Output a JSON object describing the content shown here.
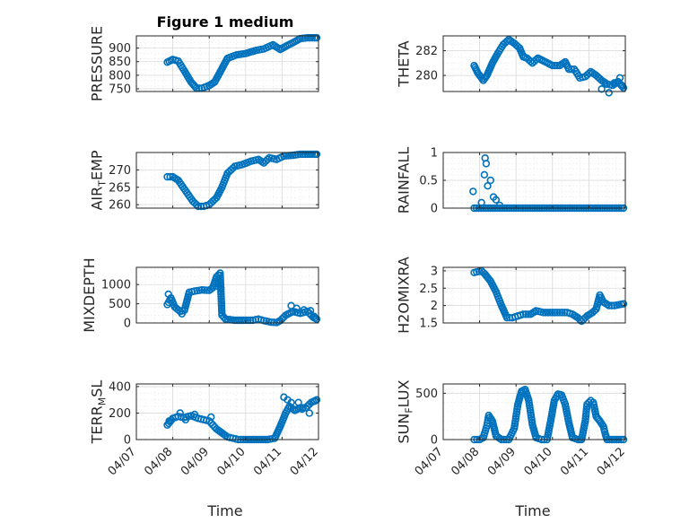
{
  "colors": {
    "marker": "#0072bd",
    "axis": "#262626"
  },
  "chart_data": {
    "type": "scatter",
    "title": "Figure 1 medium",
    "xlabel": "Time",
    "xlim_days": [
      7,
      12
    ],
    "xticks": [
      {
        "day": 7,
        "label": "04/07"
      },
      {
        "day": 8,
        "label": "04/08"
      },
      {
        "day": 9,
        "label": "04/09"
      },
      {
        "day": 10,
        "label": "04/10"
      },
      {
        "day": 11,
        "label": "04/11"
      },
      {
        "day": 12,
        "label": "04/12"
      }
    ],
    "panels": [
      {
        "id": "pressure",
        "ylabel_main": "PRESSURE",
        "ylabel_sub": "",
        "ylabel_tail": "",
        "ylim": [
          740,
          945
        ],
        "yticks": [
          750,
          800,
          850,
          900
        ],
        "keypoints": [
          [
            7.85,
            848
          ],
          [
            8.0,
            858
          ],
          [
            8.15,
            852
          ],
          [
            8.3,
            820
          ],
          [
            8.5,
            775
          ],
          [
            8.65,
            752
          ],
          [
            8.8,
            752
          ],
          [
            9.0,
            762
          ],
          [
            9.15,
            775
          ],
          [
            9.3,
            812
          ],
          [
            9.5,
            862
          ],
          [
            9.75,
            875
          ],
          [
            10.0,
            880
          ],
          [
            10.3,
            892
          ],
          [
            10.5,
            897
          ],
          [
            10.75,
            912
          ],
          [
            10.95,
            895
          ],
          [
            11.15,
            910
          ],
          [
            11.3,
            920
          ],
          [
            11.5,
            935
          ],
          [
            11.7,
            938
          ],
          [
            11.95,
            938
          ]
        ],
        "scatter": []
      },
      {
        "id": "theta",
        "ylabel_main": "THETA",
        "ylabel_sub": "",
        "ylabel_tail": "",
        "ylim": [
          278.7,
          283.2
        ],
        "yticks": [
          280,
          282
        ],
        "keypoints": [
          [
            7.85,
            280.8
          ],
          [
            7.95,
            280.2
          ],
          [
            8.1,
            279.6
          ],
          [
            8.2,
            280.0
          ],
          [
            8.35,
            281.0
          ],
          [
            8.5,
            281.8
          ],
          [
            8.65,
            282.5
          ],
          [
            8.8,
            282.9
          ],
          [
            8.95,
            282.6
          ],
          [
            9.1,
            282.2
          ],
          [
            9.2,
            281.5
          ],
          [
            9.3,
            281.4
          ],
          [
            9.45,
            281.0
          ],
          [
            9.6,
            281.4
          ],
          [
            9.8,
            281.1
          ],
          [
            10.0,
            280.8
          ],
          [
            10.2,
            280.8
          ],
          [
            10.35,
            281.1
          ],
          [
            10.45,
            280.5
          ],
          [
            10.6,
            280.5
          ],
          [
            10.75,
            279.8
          ],
          [
            10.9,
            279.9
          ],
          [
            11.05,
            280.3
          ],
          [
            11.2,
            280.0
          ],
          [
            11.35,
            279.6
          ],
          [
            11.5,
            279.3
          ],
          [
            11.65,
            279.2
          ],
          [
            11.8,
            279.5
          ],
          [
            11.95,
            279.0
          ]
        ],
        "scatter": [
          [
            11.35,
            278.9
          ],
          [
            11.45,
            279.3
          ],
          [
            11.55,
            278.6
          ],
          [
            11.7,
            279.4
          ],
          [
            11.85,
            279.8
          ],
          [
            11.9,
            279.2
          ]
        ]
      },
      {
        "id": "air_temp",
        "ylabel_main": "AIR",
        "ylabel_sub": "T",
        "ylabel_tail": "EMP",
        "ylim": [
          259,
          275
        ],
        "yticks": [
          260,
          265,
          270
        ],
        "keypoints": [
          [
            7.85,
            268.0
          ],
          [
            8.0,
            268.0
          ],
          [
            8.15,
            267.0
          ],
          [
            8.35,
            264.0
          ],
          [
            8.55,
            261.0
          ],
          [
            8.7,
            259.5
          ],
          [
            8.85,
            259.5
          ],
          [
            9.0,
            260.0
          ],
          [
            9.2,
            262.0
          ],
          [
            9.35,
            265.0
          ],
          [
            9.5,
            269.0
          ],
          [
            9.7,
            271.0
          ],
          [
            9.9,
            271.5
          ],
          [
            10.15,
            272.5
          ],
          [
            10.35,
            273.0
          ],
          [
            10.5,
            272.0
          ],
          [
            10.65,
            273.5
          ],
          [
            10.85,
            273.0
          ],
          [
            11.05,
            274.0
          ],
          [
            11.3,
            274.2
          ],
          [
            11.5,
            274.5
          ],
          [
            11.7,
            274.5
          ],
          [
            11.95,
            274.5
          ]
        ],
        "scatter": []
      },
      {
        "id": "rainfall",
        "ylabel_main": "RAINFALL",
        "ylabel_sub": "",
        "ylabel_tail": "",
        "ylim": [
          0,
          1
        ],
        "yticks": [
          0,
          0.5,
          1
        ],
        "keypoints": [
          [
            7.85,
            0
          ],
          [
            11.95,
            0
          ]
        ],
        "scatter": [
          [
            7.82,
            0.3
          ],
          [
            8.05,
            0.1
          ],
          [
            8.13,
            0.6
          ],
          [
            8.15,
            0.9
          ],
          [
            8.18,
            0.8
          ],
          [
            8.22,
            0.4
          ],
          [
            8.3,
            0.5
          ],
          [
            8.38,
            0.2
          ],
          [
            8.45,
            0.15
          ],
          [
            8.55,
            0.05
          ]
        ]
      },
      {
        "id": "mixdepth",
        "ylabel_main": "MIXDEPTH",
        "ylabel_sub": "",
        "ylabel_tail": "",
        "ylim": [
          0,
          1450
        ],
        "yticks": [
          0,
          500,
          1000
        ],
        "keypoints": [
          [
            7.85,
            480
          ],
          [
            7.95,
            650
          ],
          [
            8.05,
            420
          ],
          [
            8.2,
            300
          ],
          [
            8.32,
            330
          ],
          [
            8.45,
            800
          ],
          [
            8.6,
            830
          ],
          [
            8.8,
            860
          ],
          [
            9.0,
            850
          ],
          [
            9.1,
            920
          ],
          [
            9.2,
            1200
          ],
          [
            9.3,
            1300
          ],
          [
            9.35,
            200
          ],
          [
            9.45,
            100
          ],
          [
            9.7,
            70
          ],
          [
            10.0,
            70
          ],
          [
            10.2,
            70
          ],
          [
            10.35,
            100
          ],
          [
            10.5,
            60
          ],
          [
            10.7,
            20
          ],
          [
            10.85,
            10
          ],
          [
            10.95,
            60
          ],
          [
            11.1,
            200
          ],
          [
            11.3,
            300
          ],
          [
            11.5,
            250
          ],
          [
            11.7,
            300
          ],
          [
            11.85,
            150
          ],
          [
            11.95,
            100
          ]
        ],
        "scatter": [
          [
            7.88,
            750
          ],
          [
            8.25,
            240
          ],
          [
            9.25,
            950
          ],
          [
            9.32,
            900
          ],
          [
            11.25,
            450
          ],
          [
            11.4,
            380
          ],
          [
            11.6,
            340
          ],
          [
            11.78,
            320
          ],
          [
            11.88,
            170
          ]
        ]
      },
      {
        "id": "h2omixra",
        "ylabel_main": "H2OMIXRA",
        "ylabel_sub": "",
        "ylabel_tail": "",
        "ylim": [
          1.5,
          3.1
        ],
        "yticks": [
          1.5,
          2,
          2.5,
          3
        ],
        "keypoints": [
          [
            7.85,
            2.95
          ],
          [
            8.05,
            3.0
          ],
          [
            8.15,
            2.9
          ],
          [
            8.3,
            2.7
          ],
          [
            8.45,
            2.4
          ],
          [
            8.6,
            2.0
          ],
          [
            8.75,
            1.65
          ],
          [
            8.9,
            1.65
          ],
          [
            9.05,
            1.7
          ],
          [
            9.2,
            1.75
          ],
          [
            9.4,
            1.75
          ],
          [
            9.55,
            1.85
          ],
          [
            9.75,
            1.8
          ],
          [
            10.0,
            1.8
          ],
          [
            10.2,
            1.8
          ],
          [
            10.4,
            1.8
          ],
          [
            10.55,
            1.75
          ],
          [
            10.7,
            1.65
          ],
          [
            10.8,
            1.55
          ],
          [
            10.95,
            1.7
          ],
          [
            11.1,
            1.8
          ],
          [
            11.2,
            1.9
          ],
          [
            11.3,
            2.3
          ],
          [
            11.4,
            2.1
          ],
          [
            11.55,
            2.0
          ],
          [
            11.7,
            2.0
          ],
          [
            11.95,
            2.05
          ]
        ],
        "scatter": []
      },
      {
        "id": "terr_msl",
        "ylabel_main": "TERR",
        "ylabel_sub": "M",
        "ylabel_tail": "SL",
        "ylim": [
          0,
          420
        ],
        "yticks": [
          0,
          200,
          400
        ],
        "keypoints": [
          [
            7.85,
            110
          ],
          [
            8.0,
            160
          ],
          [
            8.15,
            175
          ],
          [
            8.3,
            165
          ],
          [
            8.5,
            180
          ],
          [
            8.7,
            160
          ],
          [
            8.85,
            150
          ],
          [
            9.0,
            140
          ],
          [
            9.1,
            110
          ],
          [
            9.2,
            80
          ],
          [
            9.35,
            50
          ],
          [
            9.5,
            20
          ],
          [
            9.65,
            10
          ],
          [
            9.8,
            0
          ],
          [
            10.0,
            0
          ],
          [
            10.3,
            0
          ],
          [
            10.6,
            0
          ],
          [
            10.8,
            10
          ],
          [
            10.95,
            100
          ],
          [
            11.1,
            200
          ],
          [
            11.2,
            250
          ],
          [
            11.35,
            220
          ],
          [
            11.5,
            240
          ],
          [
            11.65,
            240
          ],
          [
            11.8,
            280
          ],
          [
            11.95,
            300
          ]
        ],
        "scatter": [
          [
            7.9,
            140
          ],
          [
            8.2,
            200
          ],
          [
            8.35,
            150
          ],
          [
            8.6,
            190
          ],
          [
            9.05,
            170
          ],
          [
            9.3,
            60
          ],
          [
            11.05,
            320
          ],
          [
            11.15,
            300
          ],
          [
            11.25,
            280
          ],
          [
            11.45,
            280
          ],
          [
            11.55,
            230
          ],
          [
            11.75,
            200
          ],
          [
            11.9,
            290
          ]
        ]
      },
      {
        "id": "sun_flux",
        "ylabel_main": "SUN",
        "ylabel_sub": "F",
        "ylabel_tail": "LUX",
        "ylim": [
          0,
          600
        ],
        "yticks": [
          0,
          500
        ],
        "keypoints": [
          [
            7.85,
            0
          ],
          [
            8.0,
            0
          ],
          [
            8.1,
            20
          ],
          [
            8.2,
            150
          ],
          [
            8.25,
            260
          ],
          [
            8.35,
            200
          ],
          [
            8.45,
            40
          ],
          [
            8.6,
            0
          ],
          [
            8.8,
            0
          ],
          [
            8.95,
            120
          ],
          [
            9.05,
            380
          ],
          [
            9.15,
            520
          ],
          [
            9.25,
            540
          ],
          [
            9.35,
            420
          ],
          [
            9.45,
            160
          ],
          [
            9.55,
            20
          ],
          [
            9.7,
            0
          ],
          [
            9.85,
            0
          ],
          [
            9.95,
            200
          ],
          [
            10.05,
            420
          ],
          [
            10.15,
            490
          ],
          [
            10.25,
            480
          ],
          [
            10.35,
            380
          ],
          [
            10.45,
            180
          ],
          [
            10.55,
            20
          ],
          [
            10.7,
            0
          ],
          [
            10.8,
            0
          ],
          [
            10.9,
            200
          ],
          [
            10.95,
            380
          ],
          [
            11.05,
            420
          ],
          [
            11.12,
            400
          ],
          [
            11.2,
            250
          ],
          [
            11.3,
            200
          ],
          [
            11.4,
            140
          ],
          [
            11.45,
            60
          ],
          [
            11.5,
            0
          ],
          [
            11.95,
            0
          ]
        ],
        "scatter": []
      }
    ]
  }
}
